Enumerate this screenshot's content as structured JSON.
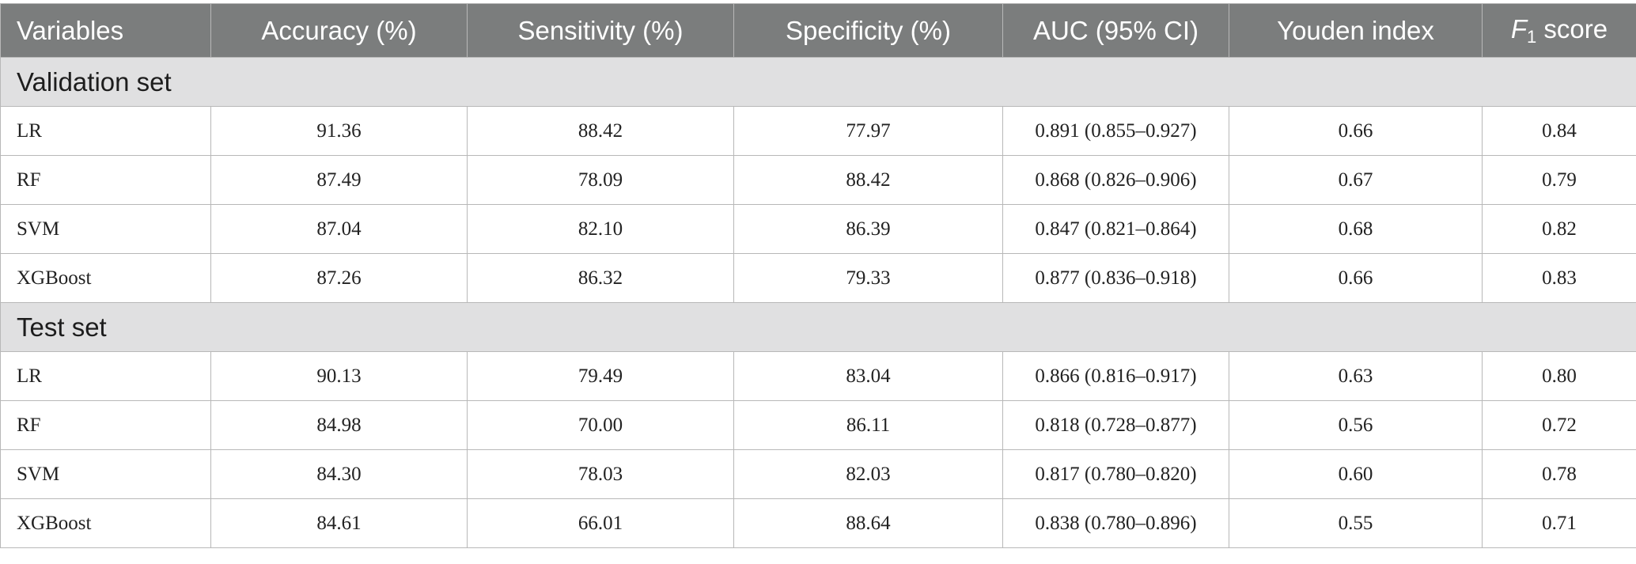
{
  "header": {
    "variables": "Variables",
    "accuracy": "Accuracy (%)",
    "sensitivity": "Sensitivity (%)",
    "specificity": "Specificity (%)",
    "auc": "AUC (95% CI)",
    "youden": "Youden index",
    "f1_letter": "F",
    "f1_sub": "1",
    "f1_text": " score"
  },
  "sections": [
    {
      "title": "Validation set",
      "rows": [
        {
          "model": "LR",
          "accuracy": "91.36",
          "sensitivity": "88.42",
          "specificity": "77.97",
          "auc": "0.891 (0.855–0.927)",
          "youden": "0.66",
          "f1": "0.84"
        },
        {
          "model": "RF",
          "accuracy": "87.49",
          "sensitivity": "78.09",
          "specificity": "88.42",
          "auc": "0.868 (0.826–0.906)",
          "youden": "0.67",
          "f1": "0.79"
        },
        {
          "model": "SVM",
          "accuracy": "87.04",
          "sensitivity": "82.10",
          "specificity": "86.39",
          "auc": "0.847 (0.821–0.864)",
          "youden": "0.68",
          "f1": "0.82"
        },
        {
          "model": "XGBoost",
          "accuracy": "87.26",
          "sensitivity": "86.32",
          "specificity": "79.33",
          "auc": "0.877 (0.836–0.918)",
          "youden": "0.66",
          "f1": "0.83"
        }
      ]
    },
    {
      "title": "Test set",
      "rows": [
        {
          "model": "LR",
          "accuracy": "90.13",
          "sensitivity": "79.49",
          "specificity": "83.04",
          "auc": "0.866 (0.816–0.917)",
          "youden": "0.63",
          "f1": "0.80"
        },
        {
          "model": "RF",
          "accuracy": "84.98",
          "sensitivity": "70.00",
          "specificity": "86.11",
          "auc": "0.818 (0.728–0.877)",
          "youden": "0.56",
          "f1": "0.72"
        },
        {
          "model": "SVM",
          "accuracy": "84.30",
          "sensitivity": "78.03",
          "specificity": "82.03",
          "auc": "0.817 (0.780–0.820)",
          "youden": "0.60",
          "f1": "0.78"
        },
        {
          "model": "XGBoost",
          "accuracy": "84.61",
          "sensitivity": "66.01",
          "specificity": "88.64",
          "auc": "0.838 (0.780–0.896)",
          "youden": "0.55",
          "f1": "0.71"
        }
      ]
    }
  ]
}
